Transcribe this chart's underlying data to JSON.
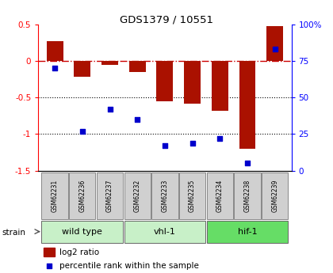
{
  "title": "GDS1379 / 10551",
  "samples": [
    "GSM62231",
    "GSM62236",
    "GSM62237",
    "GSM62232",
    "GSM62233",
    "GSM62235",
    "GSM62234",
    "GSM62238",
    "GSM62239"
  ],
  "log2_ratio": [
    0.27,
    -0.22,
    -0.05,
    -0.15,
    -0.55,
    -0.58,
    -0.68,
    -1.2,
    0.48
  ],
  "percentile_rank": [
    70,
    27,
    42,
    35,
    17,
    19,
    22,
    5,
    83
  ],
  "groups": [
    {
      "label": "wild type",
      "indices": [
        0,
        1,
        2
      ],
      "color": "#c8f0c8"
    },
    {
      "label": "vhl-1",
      "indices": [
        3,
        4,
        5
      ],
      "color": "#c8f0c8"
    },
    {
      "label": "hif-1",
      "indices": [
        6,
        7,
        8
      ],
      "color": "#66dd66"
    }
  ],
  "ylim_left": [
    -1.5,
    0.5
  ],
  "ylim_right": [
    0,
    100
  ],
  "bar_color": "#aa1100",
  "point_color": "#0000cc",
  "hline_color": "#cc0000",
  "dotted_line_color": "#000000",
  "sample_box_color": "#d0d0d0",
  "legend_bar_label": "log2 ratio",
  "legend_point_label": "percentile rank within the sample",
  "strain_label": "strain"
}
